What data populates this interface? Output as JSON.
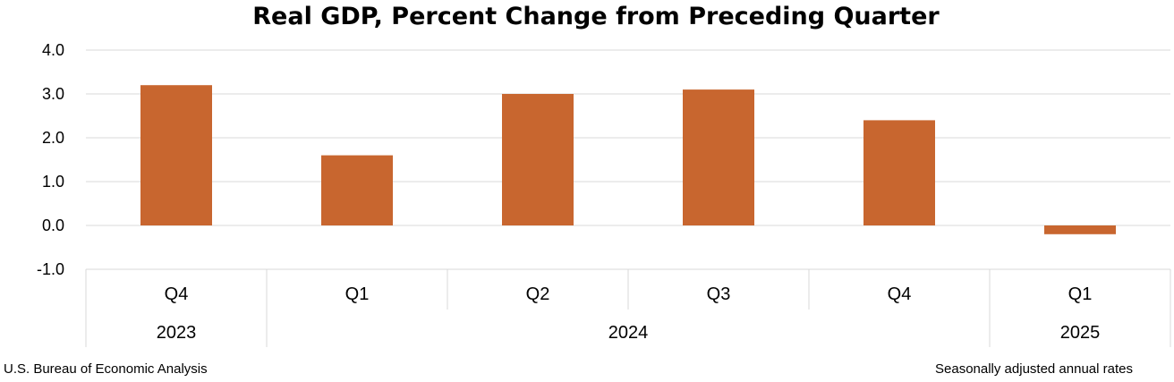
{
  "chart_data": {
    "type": "bar",
    "title": "Real GDP, Percent Change from Preceding Quarter",
    "categories": [
      "Q4",
      "Q1",
      "Q2",
      "Q3",
      "Q4",
      "Q1"
    ],
    "year_groups": [
      {
        "label": "2023",
        "count": 1
      },
      {
        "label": "2024",
        "count": 4
      },
      {
        "label": "2025",
        "count": 1
      }
    ],
    "values": [
      3.2,
      1.6,
      3.0,
      3.1,
      2.4,
      -0.2
    ],
    "yticks": [
      "4.0",
      "3.0",
      "2.0",
      "1.0",
      "0.0",
      "-1.0"
    ],
    "ylim": [
      -1.0,
      4.0
    ],
    "grid": true,
    "bar_color": "#C8662F",
    "source": "U.S. Bureau of Economic Analysis",
    "note": "Seasonally adjusted annual rates"
  }
}
